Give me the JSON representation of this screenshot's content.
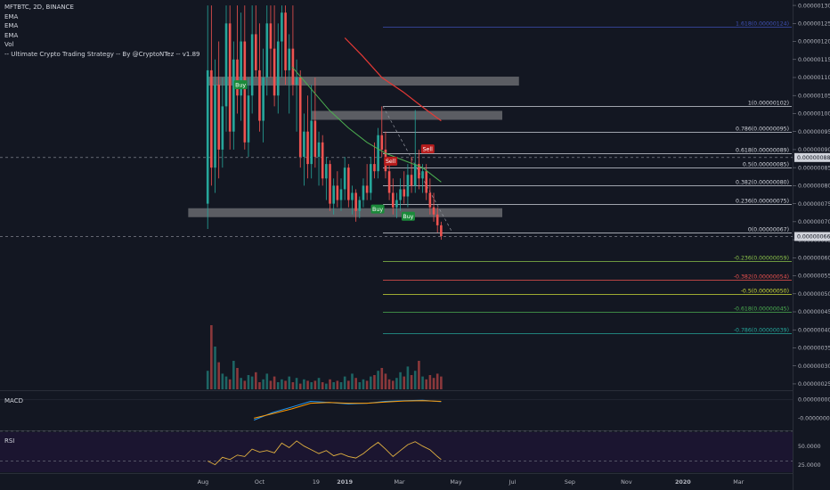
{
  "legend": {
    "symbol": "MFTBTC, 2D, BINANCE",
    "ema1": "EMA",
    "ema2": "EMA",
    "ema3": "EMA",
    "vol": "Vol",
    "strategy": "-- Ultimate Crypto Trading Strategy -- By @CryptoNTez -- v1.89"
  },
  "panes": {
    "macd_label": "MACD",
    "rsi_label": "RSI"
  },
  "colors": {
    "background": "#131722",
    "up": "#26a69a",
    "down": "#ef5350",
    "ema_green": "#4caf50",
    "ema_red": "#e53935",
    "rsi_line": "#e0b040",
    "rsi_bg": "#1b1530"
  },
  "chart_data": {
    "type": "candlestick",
    "x_ticks": [
      "Aug",
      "Oct",
      "19",
      "2019",
      "Mar",
      "May",
      "Jul",
      "Sep",
      "Nov",
      "2020",
      "Mar"
    ],
    "price_ticks": [
      "0.00000130",
      "0.00000125",
      "0.00000120",
      "0.00000115",
      "0.00000110",
      "0.00000105",
      "0.00000100",
      "0.00000095",
      "0.00000090",
      "0.00000085",
      "0.00000080",
      "0.00000075",
      "0.00000070",
      "0.00000065",
      "0.00000060",
      "0.00000055",
      "0.00000050",
      "0.00000045",
      "0.00000040",
      "0.00000035",
      "0.00000030",
      "0.00000025"
    ],
    "price_ylim": [
      2.35e-07,
      1.315e-06
    ],
    "last_price_label": "0.00000066",
    "crosshair_price_label": "0.00000088",
    "macd_ticks": [
      "0.00000000",
      "-0.00000005"
    ],
    "rsi_ticks": [
      "50.0000",
      "25.0000"
    ],
    "fib_levels": [
      {
        "label": "1.618(0.00000124)",
        "price": 1.24e-06,
        "color": "#3f51b5"
      },
      {
        "label": "1(0.00000102)",
        "price": 1.02e-06,
        "color": "#d1d4dc"
      },
      {
        "label": "0.786(0.00000095)",
        "price": 9.5e-07,
        "color": "#d1d4dc"
      },
      {
        "label": "0.618(0.00000089)",
        "price": 8.9e-07,
        "color": "#d1d4dc"
      },
      {
        "label": "0.5(0.00000085)",
        "price": 8.5e-07,
        "color": "#d1d4dc"
      },
      {
        "label": "0.382(0.00000080)",
        "price": 8e-07,
        "color": "#d1d4dc"
      },
      {
        "label": "0.236(0.00000075)",
        "price": 7.5e-07,
        "color": "#d1d4dc"
      },
      {
        "label": "0(0.00000067)",
        "price": 6.7e-07,
        "color": "#d1d4dc"
      },
      {
        "label": "-0.236(0.00000059)",
        "price": 5.9e-07,
        "color": "#8bc34a"
      },
      {
        "label": "-0.382(0.00000054)",
        "price": 5.4e-07,
        "color": "#ef5350"
      },
      {
        "label": "-0.5(0.00000050)",
        "price": 5e-07,
        "color": "#cddc39"
      },
      {
        "label": "-0.618(0.00000045)",
        "price": 4.5e-07,
        "color": "#4caf50"
      },
      {
        "label": "-0.786(0.00000039)",
        "price": 3.9e-07,
        "color": "#26a69a"
      }
    ],
    "zones": [
      {
        "from": "2018-08-06",
        "to": "2019-07-08",
        "price": 1.09e-06
      },
      {
        "from": "2018-11-26",
        "to": "2019-06-20",
        "price": 9.95e-07
      },
      {
        "from": "2018-07-16",
        "to": "2019-06-20",
        "price": 7.25e-07
      }
    ],
    "signals": [
      {
        "label": "Buy",
        "date": "2018-09-10",
        "price": 1.08e-06,
        "kind": "buy"
      },
      {
        "label": "Buy",
        "date": "2019-02-05",
        "price": 7.35e-07,
        "kind": "buy"
      },
      {
        "label": "Buy",
        "date": "2019-03-10",
        "price": 7.15e-07,
        "kind": "buy"
      },
      {
        "label": "Sell",
        "date": "2019-02-19",
        "price": 8.68e-07,
        "kind": "sell"
      },
      {
        "label": "Sell",
        "date": "2019-03-31",
        "price": 9.02e-07,
        "kind": "sell"
      }
    ],
    "candles": [
      {
        "date": "2018-08-06",
        "o": 7.5e-07,
        "h": 1.3e-06,
        "l": 6.8e-07,
        "c": 1.12e-06
      },
      {
        "date": "2018-08-10",
        "o": 1.12e-06,
        "h": 1.3e-06,
        "l": 8e-07,
        "c": 8.5e-07
      },
      {
        "date": "2018-08-14",
        "o": 8.5e-07,
        "h": 1.15e-06,
        "l": 7.8e-07,
        "c": 1.08e-06
      },
      {
        "date": "2018-08-18",
        "o": 1.08e-06,
        "h": 1.2e-06,
        "l": 8.2e-07,
        "c": 9e-07
      },
      {
        "date": "2018-08-22",
        "o": 9e-07,
        "h": 1.1e-06,
        "l": 8.5e-07,
        "c": 1.02e-06
      },
      {
        "date": "2018-08-26",
        "o": 1.02e-06,
        "h": 1.3e-06,
        "l": 9.5e-07,
        "c": 1.25e-06
      },
      {
        "date": "2018-08-30",
        "o": 1.25e-06,
        "h": 1.3e-06,
        "l": 9e-07,
        "c": 9.5e-07
      },
      {
        "date": "2018-09-03",
        "o": 9.5e-07,
        "h": 1.2e-06,
        "l": 9e-07,
        "c": 1.15e-06
      },
      {
        "date": "2018-09-07",
        "o": 1.15e-06,
        "h": 1.3e-06,
        "l": 1e-06,
        "c": 1.05e-06
      },
      {
        "date": "2018-09-11",
        "o": 1.05e-06,
        "h": 1.28e-06,
        "l": 9.8e-07,
        "c": 1.2e-06
      },
      {
        "date": "2018-09-15",
        "o": 1.2e-06,
        "h": 1.3e-06,
        "l": 9e-07,
        "c": 9.2e-07
      },
      {
        "date": "2018-09-19",
        "o": 9.2e-07,
        "h": 1.1e-06,
        "l": 8.8e-07,
        "c": 1.05e-06
      },
      {
        "date": "2018-09-23",
        "o": 1.05e-06,
        "h": 1.3e-06,
        "l": 1e-06,
        "c": 1.22e-06
      },
      {
        "date": "2018-09-27",
        "o": 1.22e-06,
        "h": 1.3e-06,
        "l": 1.1e-06,
        "c": 1.12e-06
      },
      {
        "date": "2018-10-01",
        "o": 1.12e-06,
        "h": 1.25e-06,
        "l": 9.5e-07,
        "c": 9.8e-07
      },
      {
        "date": "2018-10-05",
        "o": 9.8e-07,
        "h": 1.18e-06,
        "l": 9.2e-07,
        "c": 1.1e-06
      },
      {
        "date": "2018-10-09",
        "o": 1.1e-06,
        "h": 1.3e-06,
        "l": 1.05e-06,
        "c": 1.25e-06
      },
      {
        "date": "2018-10-13",
        "o": 1.25e-06,
        "h": 1.3e-06,
        "l": 1.1e-06,
        "c": 1.18e-06
      },
      {
        "date": "2018-10-17",
        "o": 1.18e-06,
        "h": 1.3e-06,
        "l": 1.02e-06,
        "c": 1.05e-06
      },
      {
        "date": "2018-10-21",
        "o": 1.05e-06,
        "h": 1.25e-06,
        "l": 1e-06,
        "c": 1.2e-06
      },
      {
        "date": "2018-10-25",
        "o": 1.2e-06,
        "h": 1.3e-06,
        "l": 1.1e-06,
        "c": 1.28e-06
      },
      {
        "date": "2018-10-29",
        "o": 1.28e-06,
        "h": 1.3e-06,
        "l": 1.08e-06,
        "c": 1.12e-06
      },
      {
        "date": "2018-11-02",
        "o": 1.12e-06,
        "h": 1.22e-06,
        "l": 1e-06,
        "c": 1.18e-06
      },
      {
        "date": "2018-11-06",
        "o": 1.18e-06,
        "h": 1.3e-06,
        "l": 1.05e-06,
        "c": 1.08e-06
      },
      {
        "date": "2018-11-10",
        "o": 1.08e-06,
        "h": 1.15e-06,
        "l": 9.5e-07,
        "c": 1.1e-06
      },
      {
        "date": "2018-11-14",
        "o": 1.1e-06,
        "h": 1.12e-06,
        "l": 8.5e-07,
        "c": 8.8e-07
      },
      {
        "date": "2018-11-18",
        "o": 8.8e-07,
        "h": 1e-06,
        "l": 8e-07,
        "c": 9.5e-07
      },
      {
        "date": "2018-11-22",
        "o": 9.5e-07,
        "h": 1.05e-06,
        "l": 8.2e-07,
        "c": 8.6e-07
      },
      {
        "date": "2018-11-26",
        "o": 8.6e-07,
        "h": 1.08e-06,
        "l": 8.2e-07,
        "c": 9.8e-07
      },
      {
        "date": "2018-11-30",
        "o": 9.8e-07,
        "h": 1.1e-06,
        "l": 8.5e-07,
        "c": 8.8e-07
      },
      {
        "date": "2018-12-04",
        "o": 8.8e-07,
        "h": 9.5e-07,
        "l": 8e-07,
        "c": 9.2e-07
      },
      {
        "date": "2018-12-08",
        "o": 9.2e-07,
        "h": 9.4e-07,
        "l": 8e-07,
        "c": 8.2e-07
      },
      {
        "date": "2018-12-12",
        "o": 8.2e-07,
        "h": 8.8e-07,
        "l": 7.6e-07,
        "c": 8.6e-07
      },
      {
        "date": "2018-12-16",
        "o": 8.6e-07,
        "h": 8.7e-07,
        "l": 7.3e-07,
        "c": 7.5e-07
      },
      {
        "date": "2018-12-20",
        "o": 7.5e-07,
        "h": 8.2e-07,
        "l": 7.2e-07,
        "c": 8e-07
      },
      {
        "date": "2018-12-24",
        "o": 8e-07,
        "h": 8.4e-07,
        "l": 7.4e-07,
        "c": 7.6e-07
      },
      {
        "date": "2018-12-28",
        "o": 7.6e-07,
        "h": 8.2e-07,
        "l": 7.3e-07,
        "c": 7.9e-07
      },
      {
        "date": "2019-01-01",
        "o": 7.9e-07,
        "h": 8.8e-07,
        "l": 7.6e-07,
        "c": 8.5e-07
      },
      {
        "date": "2019-01-05",
        "o": 8.5e-07,
        "h": 8.6e-07,
        "l": 7.4e-07,
        "c": 7.6e-07
      },
      {
        "date": "2019-01-09",
        "o": 7.6e-07,
        "h": 8e-07,
        "l": 7.2e-07,
        "c": 7.8e-07
      },
      {
        "date": "2019-01-13",
        "o": 7.8e-07,
        "h": 7.9e-07,
        "l": 7e-07,
        "c": 7.3e-07
      },
      {
        "date": "2019-01-17",
        "o": 7.3e-07,
        "h": 7.7e-07,
        "l": 7.1e-07,
        "c": 7.6e-07
      },
      {
        "date": "2019-01-21",
        "o": 7.6e-07,
        "h": 8.2e-07,
        "l": 7.4e-07,
        "c": 8e-07
      },
      {
        "date": "2019-01-25",
        "o": 8e-07,
        "h": 8.6e-07,
        "l": 7.6e-07,
        "c": 7.8e-07
      },
      {
        "date": "2019-01-29",
        "o": 7.8e-07,
        "h": 8.8e-07,
        "l": 7.6e-07,
        "c": 8.6e-07
      },
      {
        "date": "2019-02-02",
        "o": 8.6e-07,
        "h": 9.2e-07,
        "l": 8.2e-07,
        "c": 8.4e-07
      },
      {
        "date": "2019-02-06",
        "o": 8.4e-07,
        "h": 9.6e-07,
        "l": 8.2e-07,
        "c": 9.4e-07
      },
      {
        "date": "2019-02-10",
        "o": 9.4e-07,
        "h": 1.02e-06,
        "l": 8.8e-07,
        "c": 9e-07
      },
      {
        "date": "2019-02-14",
        "o": 9e-07,
        "h": 9.5e-07,
        "l": 8.2e-07,
        "c": 8.4e-07
      },
      {
        "date": "2019-02-18",
        "o": 8.4e-07,
        "h": 8.8e-07,
        "l": 7.6e-07,
        "c": 7.8e-07
      },
      {
        "date": "2019-02-22",
        "o": 7.8e-07,
        "h": 8.2e-07,
        "l": 7.2e-07,
        "c": 7.4e-07
      },
      {
        "date": "2019-02-26",
        "o": 7.4e-07,
        "h": 7.8e-07,
        "l": 7.1e-07,
        "c": 7.6e-07
      },
      {
        "date": "2019-03-02",
        "o": 7.6e-07,
        "h": 8.2e-07,
        "l": 7.3e-07,
        "c": 7.9e-07
      },
      {
        "date": "2019-03-06",
        "o": 7.9e-07,
        "h": 8.4e-07,
        "l": 7.5e-07,
        "c": 7.7e-07
      },
      {
        "date": "2019-03-10",
        "o": 7.7e-07,
        "h": 8.6e-07,
        "l": 7.4e-07,
        "c": 8.3e-07
      },
      {
        "date": "2019-03-14",
        "o": 8.3e-07,
        "h": 8.8e-07,
        "l": 7.8e-07,
        "c": 8e-07
      },
      {
        "date": "2019-03-18",
        "o": 8e-07,
        "h": 1.01e-06,
        "l": 7.8e-07,
        "c": 8.6e-07
      },
      {
        "date": "2019-03-22",
        "o": 8.6e-07,
        "h": 9e-07,
        "l": 7.9e-07,
        "c": 8.2e-07
      },
      {
        "date": "2019-03-26",
        "o": 8.2e-07,
        "h": 8.6e-07,
        "l": 7.8e-07,
        "c": 8.4e-07
      },
      {
        "date": "2019-03-30",
        "o": 8.4e-07,
        "h": 8.6e-07,
        "l": 7.6e-07,
        "c": 7.8e-07
      },
      {
        "date": "2019-04-03",
        "o": 7.8e-07,
        "h": 8.2e-07,
        "l": 7.2e-07,
        "c": 7.4e-07
      },
      {
        "date": "2019-04-07",
        "o": 7.4e-07,
        "h": 7.8e-07,
        "l": 7e-07,
        "c": 7.2e-07
      },
      {
        "date": "2019-04-11",
        "o": 7.2e-07,
        "h": 7.4e-07,
        "l": 6.7e-07,
        "c": 6.9e-07
      },
      {
        "date": "2019-04-15",
        "o": 6.9e-07,
        "h": 7e-07,
        "l": 6.5e-07,
        "c": 6.6e-07
      }
    ],
    "volume_ylim": [
      0,
      100
    ],
    "ema_green": [
      {
        "date": "2018-11-05",
        "v": 1.13e-06
      },
      {
        "date": "2018-11-25",
        "v": 1.07e-06
      },
      {
        "date": "2018-12-15",
        "v": 1.01e-06
      },
      {
        "date": "2019-01-05",
        "v": 9.6e-07
      },
      {
        "date": "2019-01-25",
        "v": 9.2e-07
      },
      {
        "date": "2019-02-14",
        "v": 8.9e-07
      },
      {
        "date": "2019-03-06",
        "v": 8.7e-07
      },
      {
        "date": "2019-03-26",
        "v": 8.5e-07
      },
      {
        "date": "2019-04-15",
        "v": 8.1e-07
      }
    ],
    "ema_red": [
      {
        "date": "2019-01-01",
        "v": 1.21e-06
      },
      {
        "date": "2019-01-20",
        "v": 1.16e-06
      },
      {
        "date": "2019-02-10",
        "v": 1.1e-06
      },
      {
        "date": "2019-03-05",
        "v": 1.06e-06
      },
      {
        "date": "2019-03-25",
        "v": 1.02e-06
      },
      {
        "date": "2019-04-15",
        "v": 9.8e-07
      }
    ],
    "macd_ylim": [
      -8e-08,
      2e-08
    ],
    "macd_line": [
      {
        "date": "2018-09-25",
        "v": -5.5e-08
      },
      {
        "date": "2018-10-15",
        "v": -3.5e-08
      },
      {
        "date": "2018-11-05",
        "v": -2e-08
      },
      {
        "date": "2018-11-25",
        "v": -5e-09
      },
      {
        "date": "2018-12-15",
        "v": -8e-09
      },
      {
        "date": "2019-01-05",
        "v": -1.2e-08
      },
      {
        "date": "2019-01-25",
        "v": -1e-08
      },
      {
        "date": "2019-02-14",
        "v": -5e-09
      },
      {
        "date": "2019-03-06",
        "v": -3e-09
      },
      {
        "date": "2019-03-26",
        "v": -2e-09
      },
      {
        "date": "2019-04-15",
        "v": -6e-09
      }
    ],
    "signal_line": [
      {
        "date": "2018-09-25",
        "v": -5e-08
      },
      {
        "date": "2018-10-15",
        "v": -3.8e-08
      },
      {
        "date": "2018-11-05",
        "v": -2.5e-08
      },
      {
        "date": "2018-11-25",
        "v": -1e-08
      },
      {
        "date": "2018-12-15",
        "v": -8e-09
      },
      {
        "date": "2019-01-05",
        "v": -1e-08
      },
      {
        "date": "2019-01-25",
        "v": -1e-08
      },
      {
        "date": "2019-02-14",
        "v": -7e-09
      },
      {
        "date": "2019-03-06",
        "v": -4e-09
      },
      {
        "date": "2019-03-26",
        "v": -3e-09
      },
      {
        "date": "2019-04-15",
        "v": -5e-09
      }
    ],
    "rsi_ylim": [
      15,
      70
    ],
    "rsi_bands": [
      70,
      30
    ],
    "rsi_line": [
      {
        "date": "2018-08-06",
        "v": 30
      },
      {
        "date": "2018-08-14",
        "v": 25
      },
      {
        "date": "2018-08-22",
        "v": 35
      },
      {
        "date": "2018-08-30",
        "v": 32
      },
      {
        "date": "2018-09-07",
        "v": 38
      },
      {
        "date": "2018-09-15",
        "v": 36
      },
      {
        "date": "2018-09-23",
        "v": 46
      },
      {
        "date": "2018-10-01",
        "v": 42
      },
      {
        "date": "2018-10-09",
        "v": 44
      },
      {
        "date": "2018-10-17",
        "v": 41
      },
      {
        "date": "2018-10-25",
        "v": 54
      },
      {
        "date": "2018-11-02",
        "v": 48
      },
      {
        "date": "2018-11-10",
        "v": 57
      },
      {
        "date": "2018-11-18",
        "v": 50
      },
      {
        "date": "2018-11-26",
        "v": 45
      },
      {
        "date": "2018-12-04",
        "v": 40
      },
      {
        "date": "2018-12-12",
        "v": 44
      },
      {
        "date": "2018-12-20",
        "v": 37
      },
      {
        "date": "2018-12-28",
        "v": 40
      },
      {
        "date": "2019-01-05",
        "v": 36
      },
      {
        "date": "2019-01-13",
        "v": 34
      },
      {
        "date": "2019-01-21",
        "v": 40
      },
      {
        "date": "2019-01-29",
        "v": 48
      },
      {
        "date": "2019-02-06",
        "v": 55
      },
      {
        "date": "2019-02-14",
        "v": 46
      },
      {
        "date": "2019-02-22",
        "v": 36
      },
      {
        "date": "2019-03-02",
        "v": 44
      },
      {
        "date": "2019-03-10",
        "v": 52
      },
      {
        "date": "2019-03-18",
        "v": 56
      },
      {
        "date": "2019-03-26",
        "v": 50
      },
      {
        "date": "2019-04-03",
        "v": 45
      },
      {
        "date": "2019-04-11",
        "v": 36
      },
      {
        "date": "2019-04-15",
        "v": 32
      }
    ]
  }
}
